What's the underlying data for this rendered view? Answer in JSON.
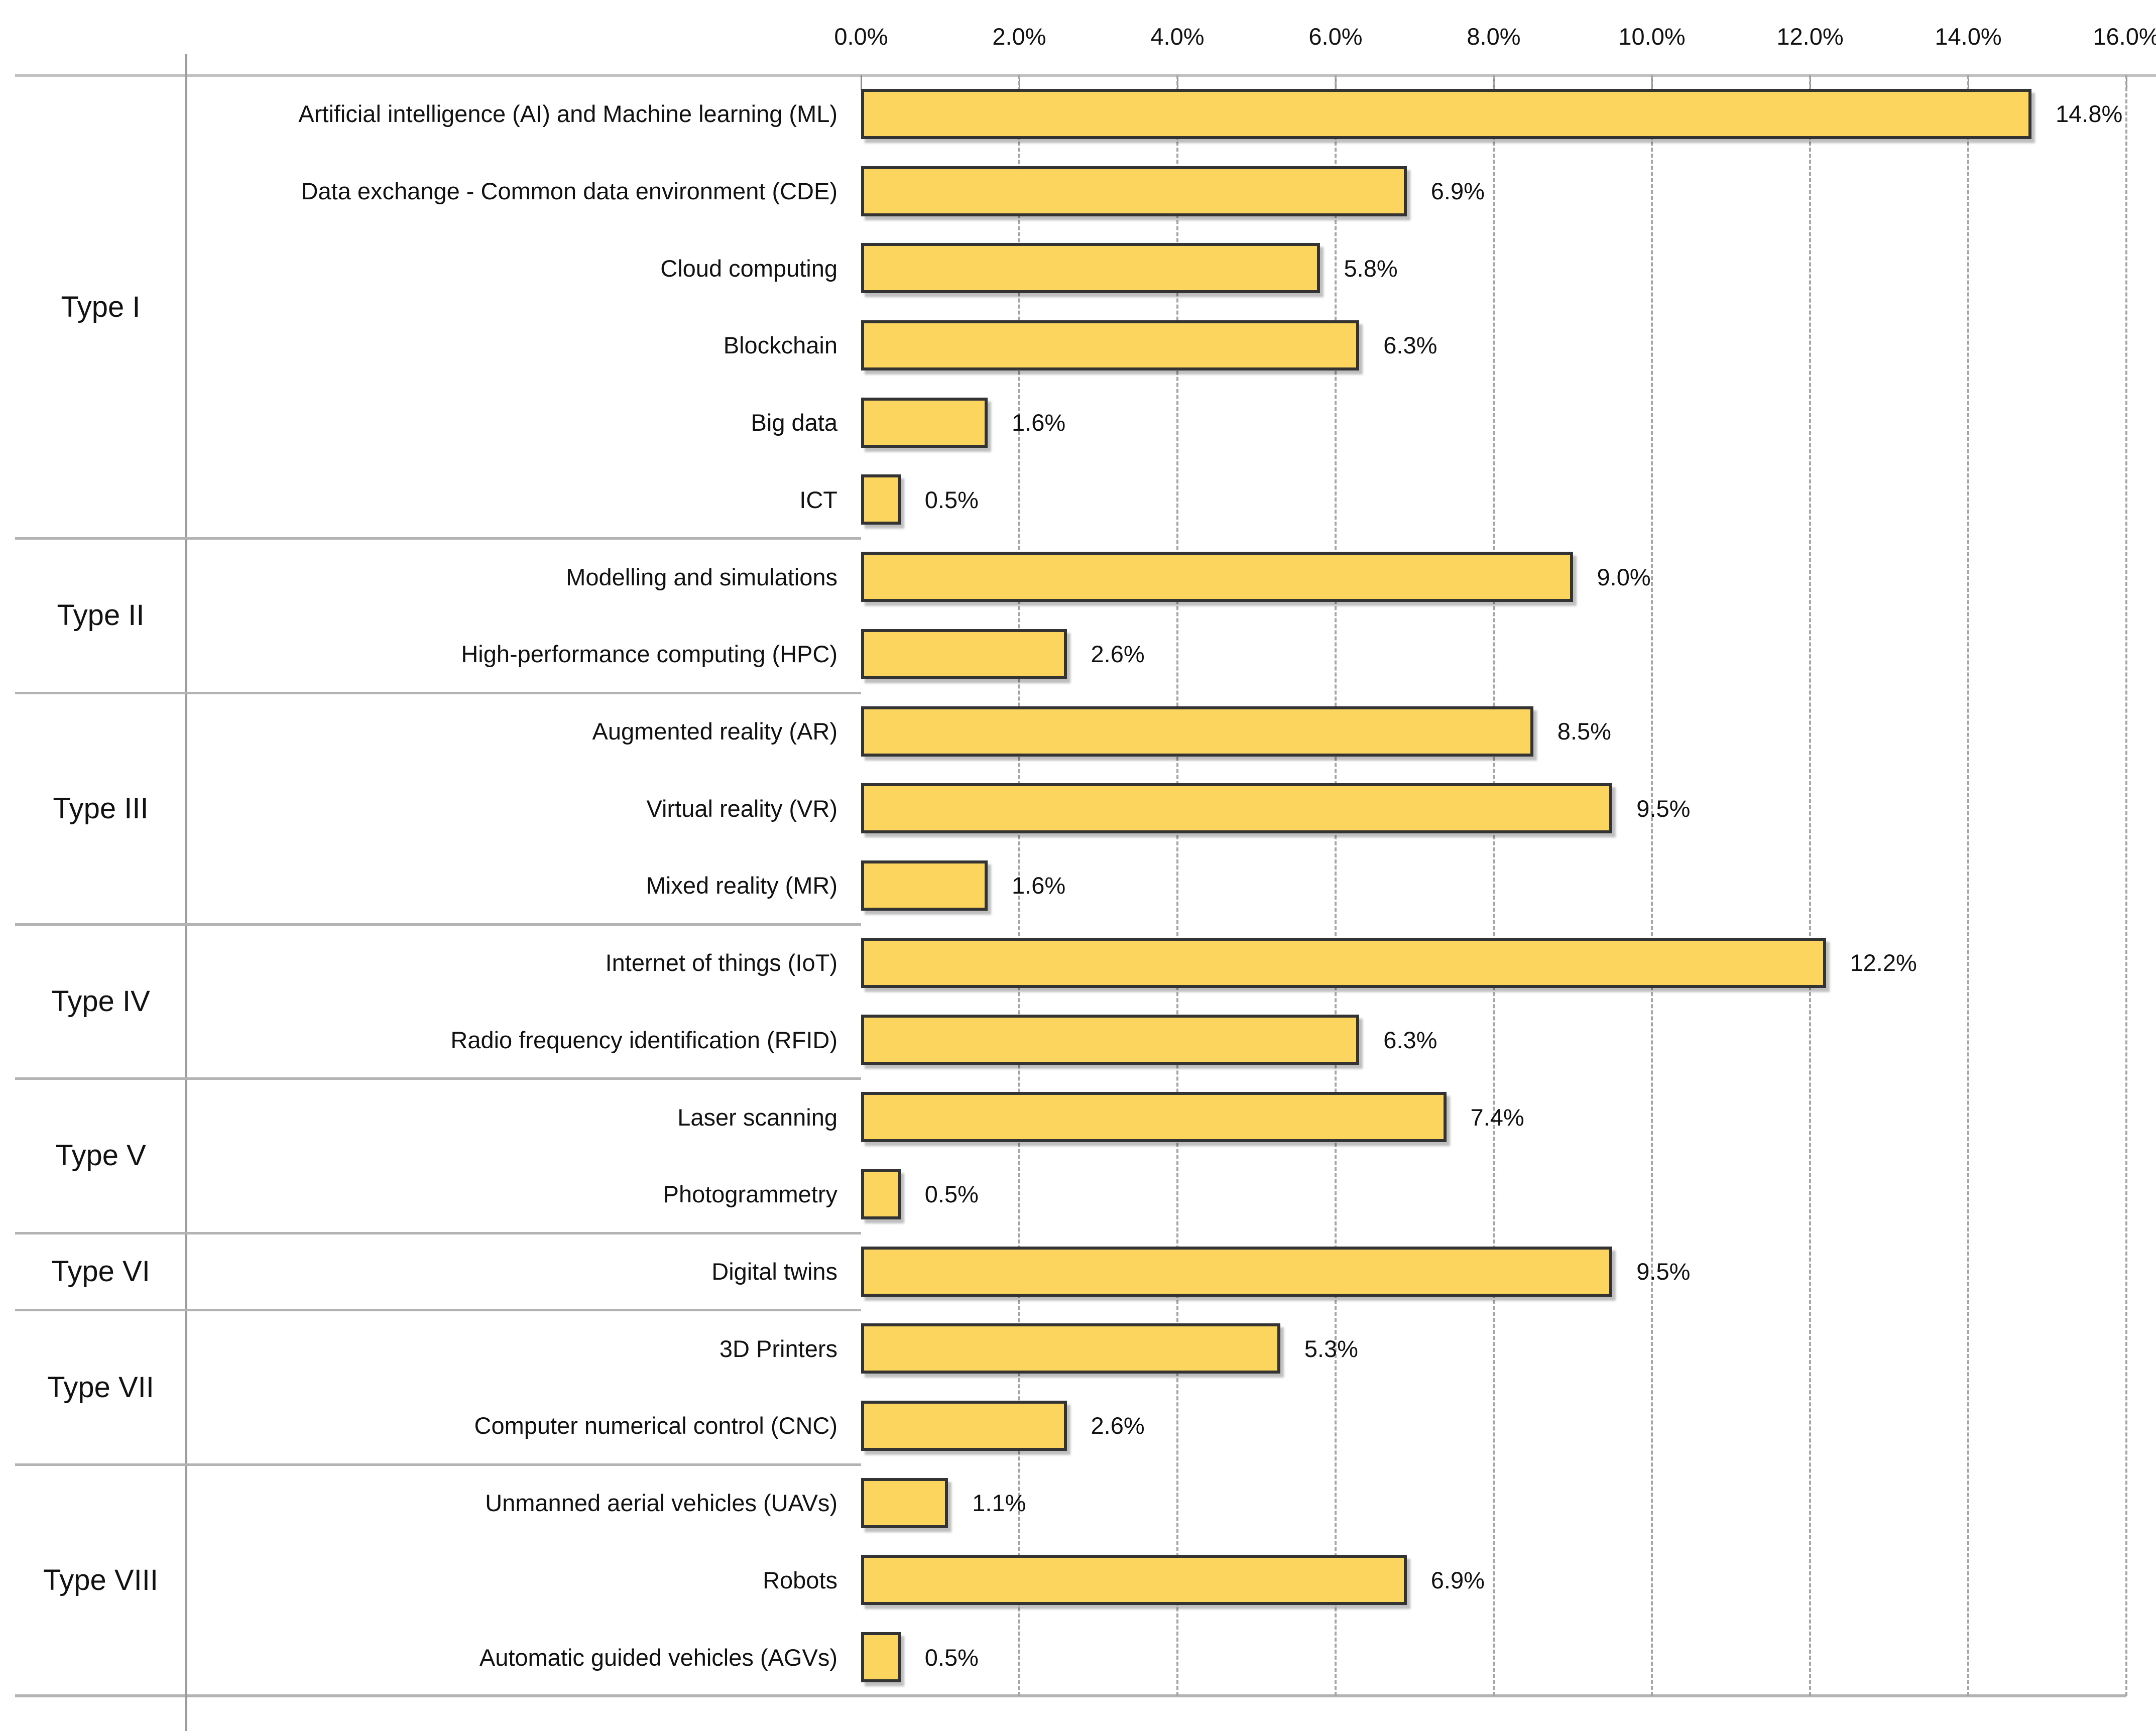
{
  "chart_data": {
    "type": "bar",
    "orientation": "horizontal",
    "title": "",
    "xlabel": "",
    "ylabel": "",
    "value_unit": "%",
    "x_axis": {
      "position": "top",
      "min": 0.0,
      "max": 16.0,
      "tick_step": 2.0,
      "tick_labels": [
        "0.0%",
        "2.0%",
        "4.0%",
        "6.0%",
        "8.0%",
        "10.0%",
        "12.0%",
        "14.0%",
        "16.0%"
      ],
      "gridlines": "vertical-dashed"
    },
    "legend": "none",
    "groups": [
      {
        "label": "Type I",
        "items": [
          {
            "label": "Artificial intelligence (AI) and Machine learning (ML)",
            "value": 14.8,
            "value_label": "14.8%"
          },
          {
            "label": "Data exchange - Common data environment (CDE)",
            "value": 6.9,
            "value_label": "6.9%"
          },
          {
            "label": "Cloud computing",
            "value": 5.8,
            "value_label": "5.8%"
          },
          {
            "label": "Blockchain",
            "value": 6.3,
            "value_label": "6.3%"
          },
          {
            "label": "Big data",
            "value": 1.6,
            "value_label": "1.6%"
          },
          {
            "label": "ICT",
            "value": 0.5,
            "value_label": "0.5%"
          }
        ]
      },
      {
        "label": "Type II",
        "items": [
          {
            "label": "Modelling and simulations",
            "value": 9.0,
            "value_label": "9.0%"
          },
          {
            "label": "High-performance computing (HPC)",
            "value": 2.6,
            "value_label": "2.6%"
          }
        ]
      },
      {
        "label": "Type III",
        "items": [
          {
            "label": "Augmented reality (AR)",
            "value": 8.5,
            "value_label": "8.5%"
          },
          {
            "label": "Virtual reality (VR)",
            "value": 9.5,
            "value_label": "9.5%"
          },
          {
            "label": "Mixed reality (MR)",
            "value": 1.6,
            "value_label": "1.6%"
          }
        ]
      },
      {
        "label": "Type IV",
        "items": [
          {
            "label": "Internet of things (IoT)",
            "value": 12.2,
            "value_label": "12.2%"
          },
          {
            "label": "Radio frequency identification (RFID)",
            "value": 6.3,
            "value_label": "6.3%"
          }
        ]
      },
      {
        "label": "Type V",
        "items": [
          {
            "label": "Laser scanning",
            "value": 7.4,
            "value_label": "7.4%"
          },
          {
            "label": "Photogrammetry",
            "value": 0.5,
            "value_label": "0.5%"
          }
        ]
      },
      {
        "label": "Type VI",
        "items": [
          {
            "label": "Digital twins",
            "value": 9.5,
            "value_label": "9.5%"
          }
        ]
      },
      {
        "label": "Type VII",
        "items": [
          {
            "label": "3D Printers",
            "value": 5.3,
            "value_label": "5.3%"
          },
          {
            "label": "Computer numerical control (CNC)",
            "value": 2.6,
            "value_label": "2.6%"
          }
        ]
      },
      {
        "label": "Type VIII",
        "items": [
          {
            "label": "Unmanned aerial vehicles (UAVs)",
            "value": 1.1,
            "value_label": "1.1%"
          },
          {
            "label": "Robots",
            "value": 6.9,
            "value_label": "6.9%"
          },
          {
            "label": "Automatic guided vehicles (AGVs)",
            "value": 0.5,
            "value_label": "0.5%"
          }
        ]
      }
    ],
    "colors": {
      "bar_fill": "#FCD55F",
      "bar_border": "#333333",
      "gridline": "#A6A6A6",
      "top_axis_line": "#C2C2C2",
      "bottom_axis_line": "#B3B3B3",
      "divider_line": "#B3B3B3",
      "category_line": "#9B9B9B",
      "tick_mark": "#8C8C8C",
      "text": "#111111",
      "background": "#FFFFFF"
    }
  }
}
